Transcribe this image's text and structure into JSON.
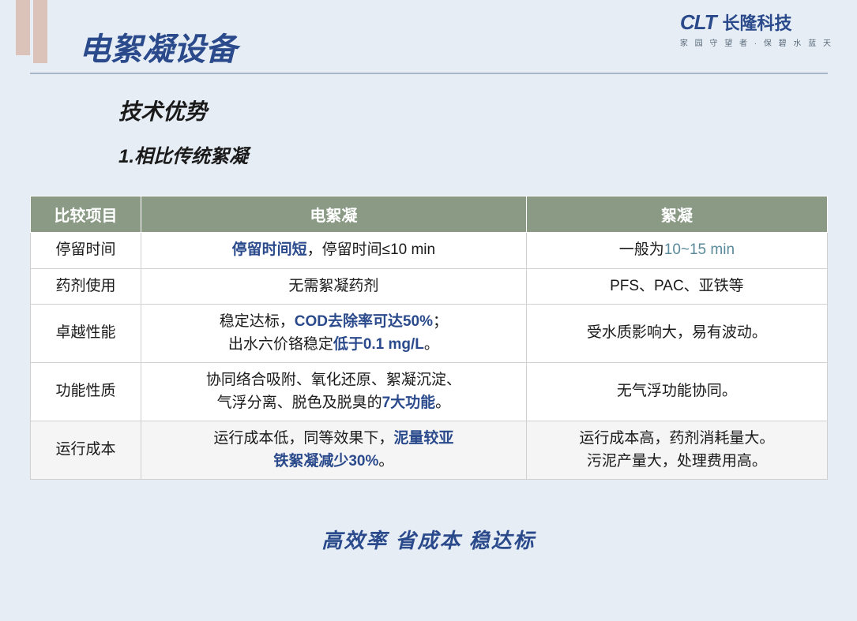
{
  "logo": {
    "abbr": "CLT",
    "name_cn": "长隆科技",
    "tagline": "家 园 守 望 者 · 保 碧 水 蓝 天"
  },
  "page_title": "电絮凝设备",
  "subtitle": "技术优势",
  "section_label": "1.相比传统絮凝",
  "table": {
    "headers": [
      "比较项目",
      "电絮凝",
      "絮凝"
    ],
    "rows": [
      {
        "label": "停留时间",
        "col1_parts": [
          {
            "text": "停留时间短",
            "cls": "hl-blue"
          },
          {
            "text": "，停留时间≤10 min",
            "cls": ""
          }
        ],
        "col2_parts": [
          {
            "text": "一般为",
            "cls": ""
          },
          {
            "text": "10~15 min",
            "cls": "hl-teal"
          }
        ]
      },
      {
        "label": "药剂使用",
        "col1_parts": [
          {
            "text": "无需絮凝药剂",
            "cls": ""
          }
        ],
        "col2_parts": [
          {
            "text": "PFS、PAC、亚铁等",
            "cls": ""
          }
        ]
      },
      {
        "label": "卓越性能",
        "col1_parts": [
          {
            "text": "稳定达标，",
            "cls": ""
          },
          {
            "text": "COD去除率可达50%",
            "cls": "hl-blue"
          },
          {
            "text": "；",
            "cls": ""
          },
          {
            "text": "\n出水六价铬稳定",
            "cls": ""
          },
          {
            "text": "低于0.1 mg/L",
            "cls": "hl-blue"
          },
          {
            "text": "。",
            "cls": ""
          }
        ],
        "col2_parts": [
          {
            "text": "受水质影响大，易有波动。",
            "cls": ""
          }
        ]
      },
      {
        "label": "功能性质",
        "col1_parts": [
          {
            "text": "协同络合吸附、氧化还原、絮凝沉淀、\n气浮分离、脱色及脱臭的",
            "cls": ""
          },
          {
            "text": "7大功能",
            "cls": "hl-blue"
          },
          {
            "text": "。",
            "cls": ""
          }
        ],
        "col2_parts": [
          {
            "text": "无气浮功能协同。",
            "cls": ""
          }
        ]
      },
      {
        "label": "运行成本",
        "col1_parts": [
          {
            "text": "运行成本低，同等效果下，",
            "cls": ""
          },
          {
            "text": "泥量较亚\n铁絮凝减少30%",
            "cls": "hl-blue"
          },
          {
            "text": "。",
            "cls": ""
          }
        ],
        "col2_parts": [
          {
            "text": "运行成本高，药剂消耗量大。\n污泥产量大，处理费用高。",
            "cls": ""
          }
        ]
      }
    ]
  },
  "footer_slogan": "高效率  省成本  稳达标",
  "colors": {
    "background": "#e6edf5",
    "title_blue": "#2a4a8c",
    "header_bg": "#8a9a85",
    "deco_bar": "#dcc3ba",
    "hl_teal": "#5a8a9a",
    "row_alt": "#f5f5f5",
    "hr": "#a8b4c8"
  }
}
